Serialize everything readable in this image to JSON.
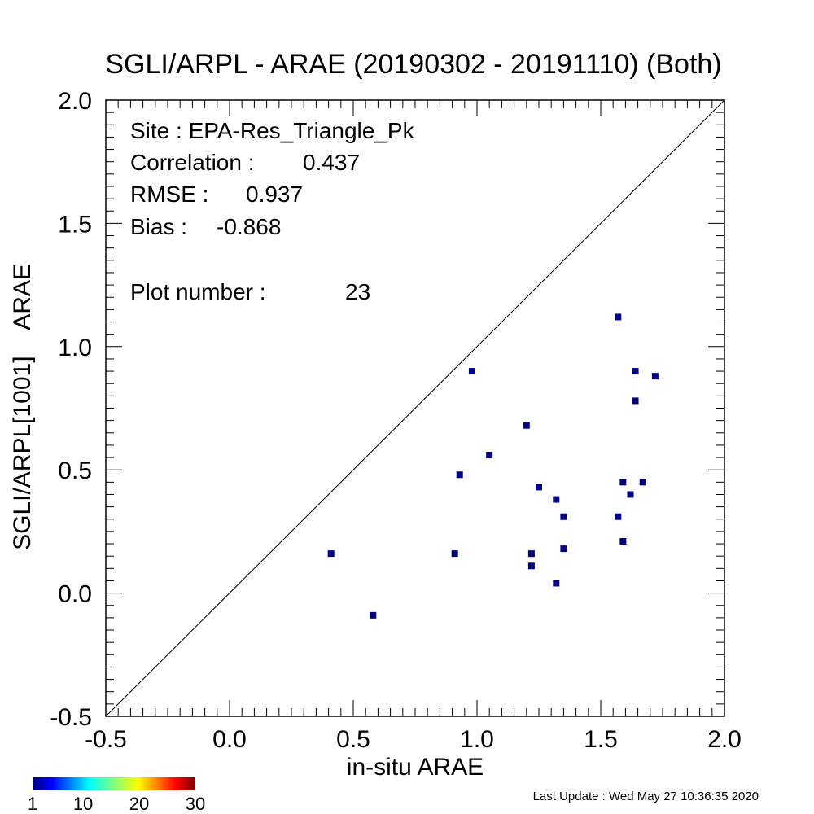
{
  "chart_data": {
    "type": "scatter",
    "title": "SGLI/ARPL - ARAE (20190302 - 20191110) (Both)",
    "xlabel": "in-situ ARAE",
    "ylabel": "SGLI/ARPL[1001]    ARAE",
    "xlim": [
      -0.5,
      2.0
    ],
    "ylim": [
      -0.5,
      2.0
    ],
    "x_ticks": [
      "-0.5",
      "0.0",
      "0.5",
      "1.0",
      "1.5",
      "2.0"
    ],
    "y_ticks": [
      "-0.5",
      "0.0",
      "0.5",
      "1.0",
      "1.5",
      "2.0"
    ],
    "reference_line": "1:1",
    "grid": false,
    "marker_color": "#000080",
    "points": [
      {
        "x": 0.41,
        "y": 0.16
      },
      {
        "x": 0.58,
        "y": -0.09
      },
      {
        "x": 0.91,
        "y": 0.16
      },
      {
        "x": 0.93,
        "y": 0.48
      },
      {
        "x": 0.98,
        "y": 0.9
      },
      {
        "x": 1.05,
        "y": 0.56
      },
      {
        "x": 1.2,
        "y": 0.68
      },
      {
        "x": 1.22,
        "y": 0.16
      },
      {
        "x": 1.22,
        "y": 0.11
      },
      {
        "x": 1.25,
        "y": 0.43
      },
      {
        "x": 1.32,
        "y": 0.38
      },
      {
        "x": 1.32,
        "y": 0.04
      },
      {
        "x": 1.35,
        "y": 0.31
      },
      {
        "x": 1.35,
        "y": 0.18
      },
      {
        "x": 1.57,
        "y": 1.12
      },
      {
        "x": 1.57,
        "y": 0.31
      },
      {
        "x": 1.59,
        "y": 0.45
      },
      {
        "x": 1.59,
        "y": 0.21
      },
      {
        "x": 1.62,
        "y": 0.4
      },
      {
        "x": 1.64,
        "y": 0.9
      },
      {
        "x": 1.64,
        "y": 0.78
      },
      {
        "x": 1.67,
        "y": 0.45
      },
      {
        "x": 1.72,
        "y": 0.88
      }
    ],
    "stats": {
      "site_label": "Site : EPA-Res_Triangle_Pk",
      "correlation_label": "Correlation :",
      "correlation": "0.437",
      "rmse_label": "RMSE :",
      "rmse": "0.937",
      "bias_label": "Bias :",
      "bias": "-0.868",
      "plot_number_label": "Plot number :",
      "plot_number": "23"
    },
    "colorbar": {
      "ticks": [
        "1",
        "10",
        "20",
        "30"
      ],
      "range": [
        1,
        30
      ]
    }
  },
  "footer": {
    "last_update": "Last Update : Wed May 27 10:36:35 2020"
  }
}
